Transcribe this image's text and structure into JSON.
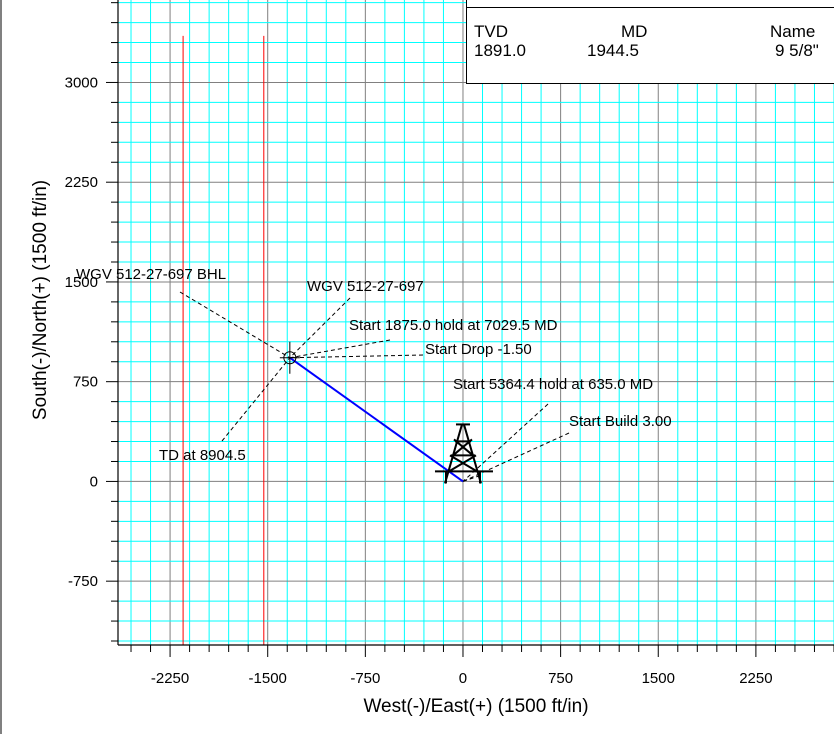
{
  "chart_data": {
    "type": "line",
    "xlabel": "West(-)/East(+)  (1500 ft/in)",
    "ylabel": "South(-)/North(+)  (1500 ft/in)",
    "xlim": [
      -2650,
      2850
    ],
    "ylim": [
      -1230,
      3620
    ],
    "x_ticks": [
      -2250,
      -1500,
      -750,
      0,
      750,
      1500,
      2250
    ],
    "x_tick_labels": [
      "-2250",
      "-1500",
      "-750",
      "0",
      "750",
      "1500",
      "2250"
    ],
    "y_ticks": [
      -750,
      0,
      750,
      1500,
      2250,
      3000
    ],
    "y_tick_labels": [
      "-750",
      "0",
      "750",
      "1500",
      "2250",
      "3000"
    ],
    "grid": true,
    "grid_minor_step": 150,
    "grid_major_step": 750,
    "colors": {
      "grid_minor": "#00ffff",
      "grid_major": "#808080",
      "wellpath": "#0000ff",
      "boundary_lines": "#ff0000",
      "leader_lines": "#000000"
    },
    "series": [
      {
        "points": [
          [
            0,
            0
          ],
          [
            -1330,
            930
          ]
        ]
      }
    ],
    "boundary_lines_x": [
      -2150,
      -1530
    ],
    "surface_location": [
      0,
      0
    ],
    "target_location": [
      -1330,
      930
    ],
    "annotations": [
      {
        "text": "WGV 512-27-697 BHL",
        "target": [
          -1330,
          930
        ]
      },
      {
        "text": "WGV 512-27-697",
        "target": [
          -1330,
          930
        ]
      },
      {
        "text": "Start 1875.0 hold at 7029.5 MD",
        "target": [
          -1330,
          930
        ]
      },
      {
        "text": "Start Drop -1.50",
        "target": [
          -1330,
          930
        ]
      },
      {
        "text": "Start 5364.4 hold at 635.0 MD",
        "target": [
          0,
          0
        ]
      },
      {
        "text": "Start Build 3.00",
        "target": [
          0,
          0
        ]
      },
      {
        "text": "TD at 8904.5",
        "target": [
          -1330,
          930
        ]
      }
    ],
    "casing_table": {
      "headers": [
        "TVD",
        "MD",
        "Name"
      ],
      "rows": [
        [
          "1891.0",
          "1944.5",
          "9 5/8\""
        ]
      ]
    }
  }
}
